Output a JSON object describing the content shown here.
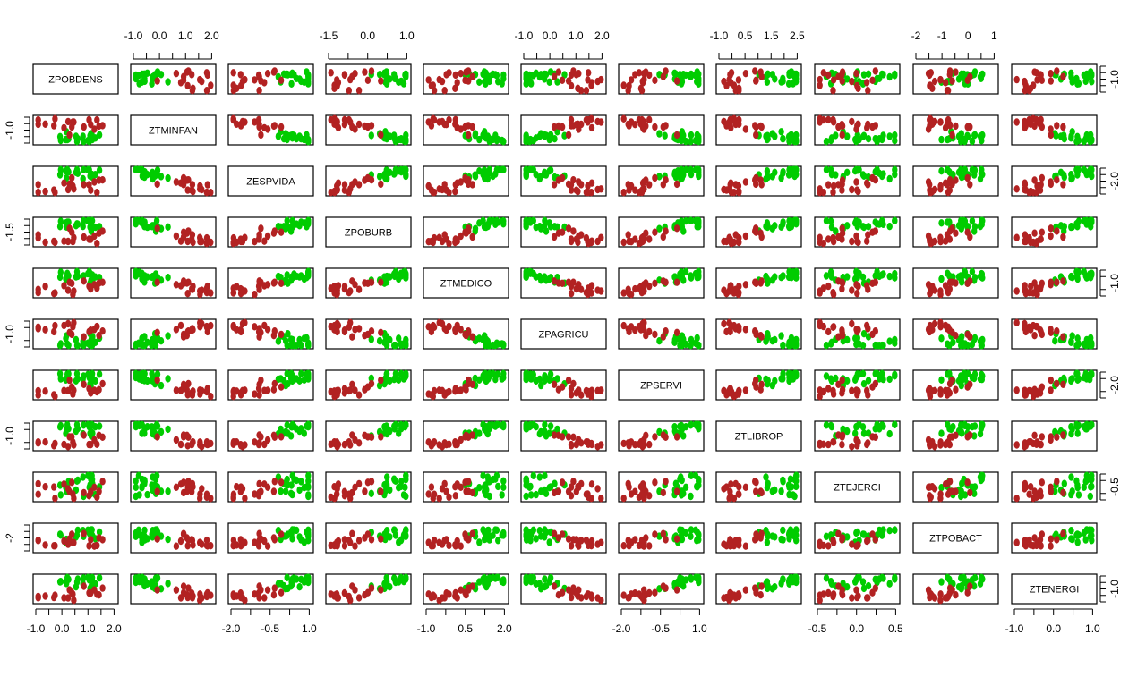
{
  "chart_data": {
    "type": "scatter",
    "kind": "scatterplot-matrix",
    "variables": [
      "ZPOBDENS",
      "ZTMINFAN",
      "ZESPVIDA",
      "ZPOBURB",
      "ZTMEDICO",
      "ZPAGRICU",
      "ZPSERVI",
      "ZTLIBROP",
      "ZTEJERCI",
      "ZTPOBACT",
      "ZTENERGI"
    ],
    "groups": [
      {
        "color": "#00cc00"
      },
      {
        "color": "#b22222"
      }
    ],
    "top_axes": [
      {
        "column": 1,
        "ticks": [
          "-1.0",
          "0.0",
          "1.0",
          "2.0"
        ]
      },
      {
        "column": 3,
        "ticks": [
          "-1.5",
          "0.0",
          "1.0"
        ]
      },
      {
        "column": 5,
        "ticks": [
          "-1.0",
          "0.0",
          "1.0",
          "2.0"
        ]
      },
      {
        "column": 7,
        "ticks": [
          "-1.0",
          "0.5",
          "1.5",
          "2.5"
        ]
      },
      {
        "column": 9,
        "ticks": [
          "-2",
          "-1",
          "0",
          "1"
        ]
      }
    ],
    "bottom_axes": [
      {
        "column": 0,
        "ticks": [
          "-1.0",
          "0.0",
          "1.0",
          "2.0"
        ]
      },
      {
        "column": 2,
        "ticks": [
          "-2.0",
          "-0.5",
          "1.0"
        ]
      },
      {
        "column": 4,
        "ticks": [
          "-1.0",
          "0.5",
          "2.0"
        ]
      },
      {
        "column": 6,
        "ticks": [
          "-2.0",
          "-0.5",
          "1.0"
        ]
      },
      {
        "column": 8,
        "ticks": [
          "-0.5",
          "0.0",
          "0.5"
        ]
      },
      {
        "column": 10,
        "ticks": [
          "-1.0",
          "0.0",
          "1.0"
        ]
      }
    ],
    "left_axes": [
      {
        "row": 1,
        "ticks": [
          "-1.0"
        ]
      },
      {
        "row": 3,
        "ticks": [
          "-1.5"
        ]
      },
      {
        "row": 5,
        "ticks": [
          "-1.0"
        ]
      },
      {
        "row": 7,
        "ticks": [
          "-1.0"
        ]
      },
      {
        "row": 9,
        "ticks": [
          "-2"
        ]
      }
    ],
    "right_axes": [
      {
        "row": 0,
        "ticks": [
          "-1.0"
        ]
      },
      {
        "row": 2,
        "ticks": [
          "-2.0"
        ]
      },
      {
        "row": 4,
        "ticks": [
          "-1.0"
        ]
      },
      {
        "row": 6,
        "ticks": [
          "-2.0"
        ]
      },
      {
        "row": 8,
        "ticks": [
          "-0.5"
        ]
      },
      {
        "row": 10,
        "ticks": [
          "-1.0"
        ]
      }
    ],
    "grid": false,
    "legend": "none"
  }
}
